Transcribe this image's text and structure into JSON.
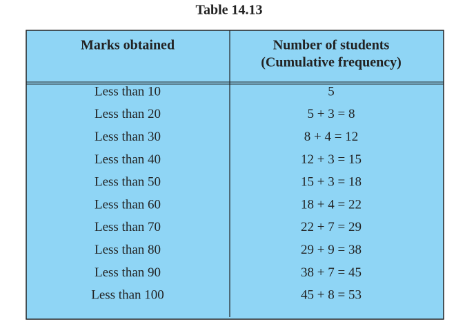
{
  "title": "Table 14.13",
  "table": {
    "columns": [
      {
        "lines": [
          "Marks obtained"
        ]
      },
      {
        "lines": [
          "Number of students",
          "(Cumulative frequency)"
        ]
      }
    ],
    "rows": [
      [
        "Less than 10",
        "5"
      ],
      [
        "Less than 20",
        "5 + 3 = 8"
      ],
      [
        "Less than 30",
        "8 + 4 = 12"
      ],
      [
        "Less than 40",
        "12 + 3 = 15"
      ],
      [
        "Less than 50",
        "15 + 3 = 18"
      ],
      [
        "Less than 60",
        "18 + 4 = 22"
      ],
      [
        "Less than 70",
        "22 + 7 = 29"
      ],
      [
        "Less than 80",
        "29 + 9 = 38"
      ],
      [
        "Less than 90",
        "38 + 7 = 45"
      ],
      [
        "Less than 100",
        "45 + 8 = 53"
      ]
    ]
  }
}
